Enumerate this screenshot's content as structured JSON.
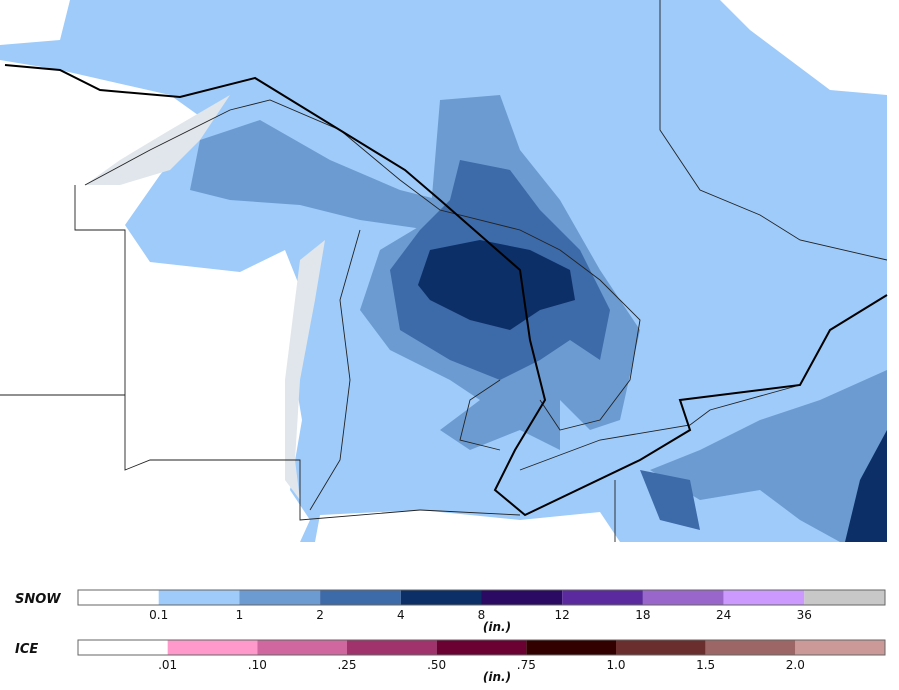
{
  "legend": {
    "snow": {
      "label": "SNOW",
      "unit": "(in.)",
      "colors": [
        "#ffffff",
        "#9ecbfa",
        "#6b9bd1",
        "#3d6aa8",
        "#0b2f66",
        "#2a0a63",
        "#5b2a9e",
        "#9966cc",
        "#cc99ff",
        "#c8c8c8"
      ],
      "ticks": [
        "0.1",
        "1",
        "2",
        "4",
        "8",
        "12",
        "18",
        "24",
        "36"
      ]
    },
    "ice": {
      "label": "ICE",
      "unit": "(in.)",
      "colors": [
        "#ffffff",
        "#ff99cc",
        "#d0679f",
        "#a0336b",
        "#6b0033",
        "#330000",
        "#6b2e2e",
        "#9c6666",
        "#cc9999"
      ],
      "ticks": [
        ".01",
        ".10",
        ".25",
        ".50",
        ".75",
        "1.0",
        "1.5",
        "2.0"
      ]
    }
  }
}
